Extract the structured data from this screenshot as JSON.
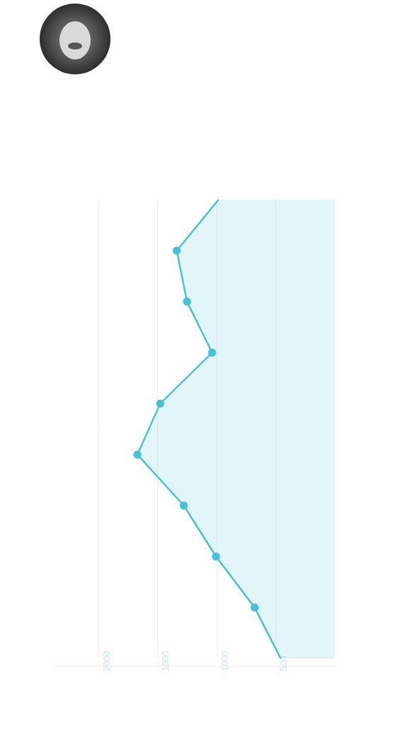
{
  "chart_data": {
    "type": "area",
    "categories": [
      null,
      null,
      null,
      null,
      null,
      null,
      null,
      null,
      null,
      null
    ],
    "values": [
      460,
      680,
      1007,
      1280,
      1673,
      1480,
      1040,
      1253,
      1340,
      987
    ],
    "color": "#4bbfd3",
    "ylim": [
      0,
      2400
    ],
    "yticks": [
      500,
      1000,
      1500,
      2000
    ],
    "grid": true,
    "tick_labels": "y"
  }
}
